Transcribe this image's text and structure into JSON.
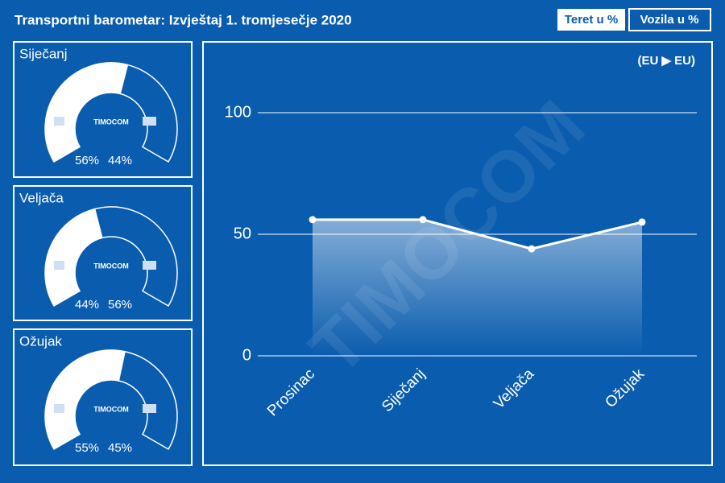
{
  "header": {
    "title": "Transportni barometar: Izvještaj 1. tromjesečje 2020",
    "buttons": [
      "Teret u %",
      "Vozila u %"
    ]
  },
  "chart_data": [
    {
      "type": "gauge",
      "title": "Siječanj",
      "values": [
        56,
        44
      ],
      "value_labels": [
        "56%",
        "44%"
      ],
      "colors": [
        "#ffffff",
        "#0a5cae"
      ],
      "logo": "TIMOCOM"
    },
    {
      "type": "gauge",
      "title": "Veljača",
      "values": [
        44,
        56
      ],
      "value_labels": [
        "44%",
        "56%"
      ],
      "colors": [
        "#ffffff",
        "#0a5cae"
      ],
      "logo": "TIMOCOM"
    },
    {
      "type": "gauge",
      "title": "Ožujak",
      "values": [
        55,
        45
      ],
      "value_labels": [
        "55%",
        "45%"
      ],
      "colors": [
        "#ffffff",
        "#0a5cae"
      ],
      "logo": "TIMOCOM"
    },
    {
      "type": "line",
      "annotation": "(EU ▶ EU)",
      "watermark": "TIMOCOM",
      "categories": [
        "Prosinac",
        "Siječanj",
        "Veljača",
        "Ožujak"
      ],
      "values": [
        56,
        56,
        44,
        55
      ],
      "color": "#ffffff",
      "ylim": [
        0,
        100
      ],
      "yticks": [
        0,
        50,
        100
      ],
      "grid": true
    }
  ]
}
